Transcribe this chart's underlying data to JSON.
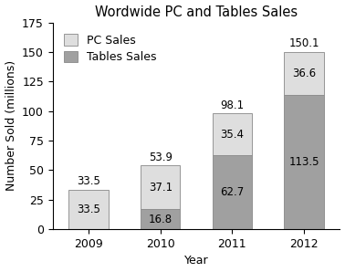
{
  "title": "Wordwide PC and Tables Sales",
  "xlabel": "Year",
  "ylabel": "Number Sold (millions)",
  "categories": [
    "2009",
    "2010",
    "2011",
    "2012"
  ],
  "pc_sales": [
    33.5,
    37.1,
    35.4,
    36.6
  ],
  "tablet_sales": [
    0.0,
    16.8,
    62.7,
    113.5
  ],
  "pc_totals": [
    33.5,
    53.9,
    98.1,
    150.1
  ],
  "pc_color": "#dedede",
  "tablet_color": "#a0a0a0",
  "bar_width": 0.55,
  "ylim": [
    0,
    175
  ],
  "yticks": [
    0,
    25,
    50,
    75,
    100,
    125,
    150,
    175
  ],
  "legend_pc": "PC Sales",
  "legend_tablet": "Tables Sales",
  "title_fontsize": 10.5,
  "label_fontsize": 9,
  "tick_fontsize": 9,
  "annot_fontsize": 8.5
}
